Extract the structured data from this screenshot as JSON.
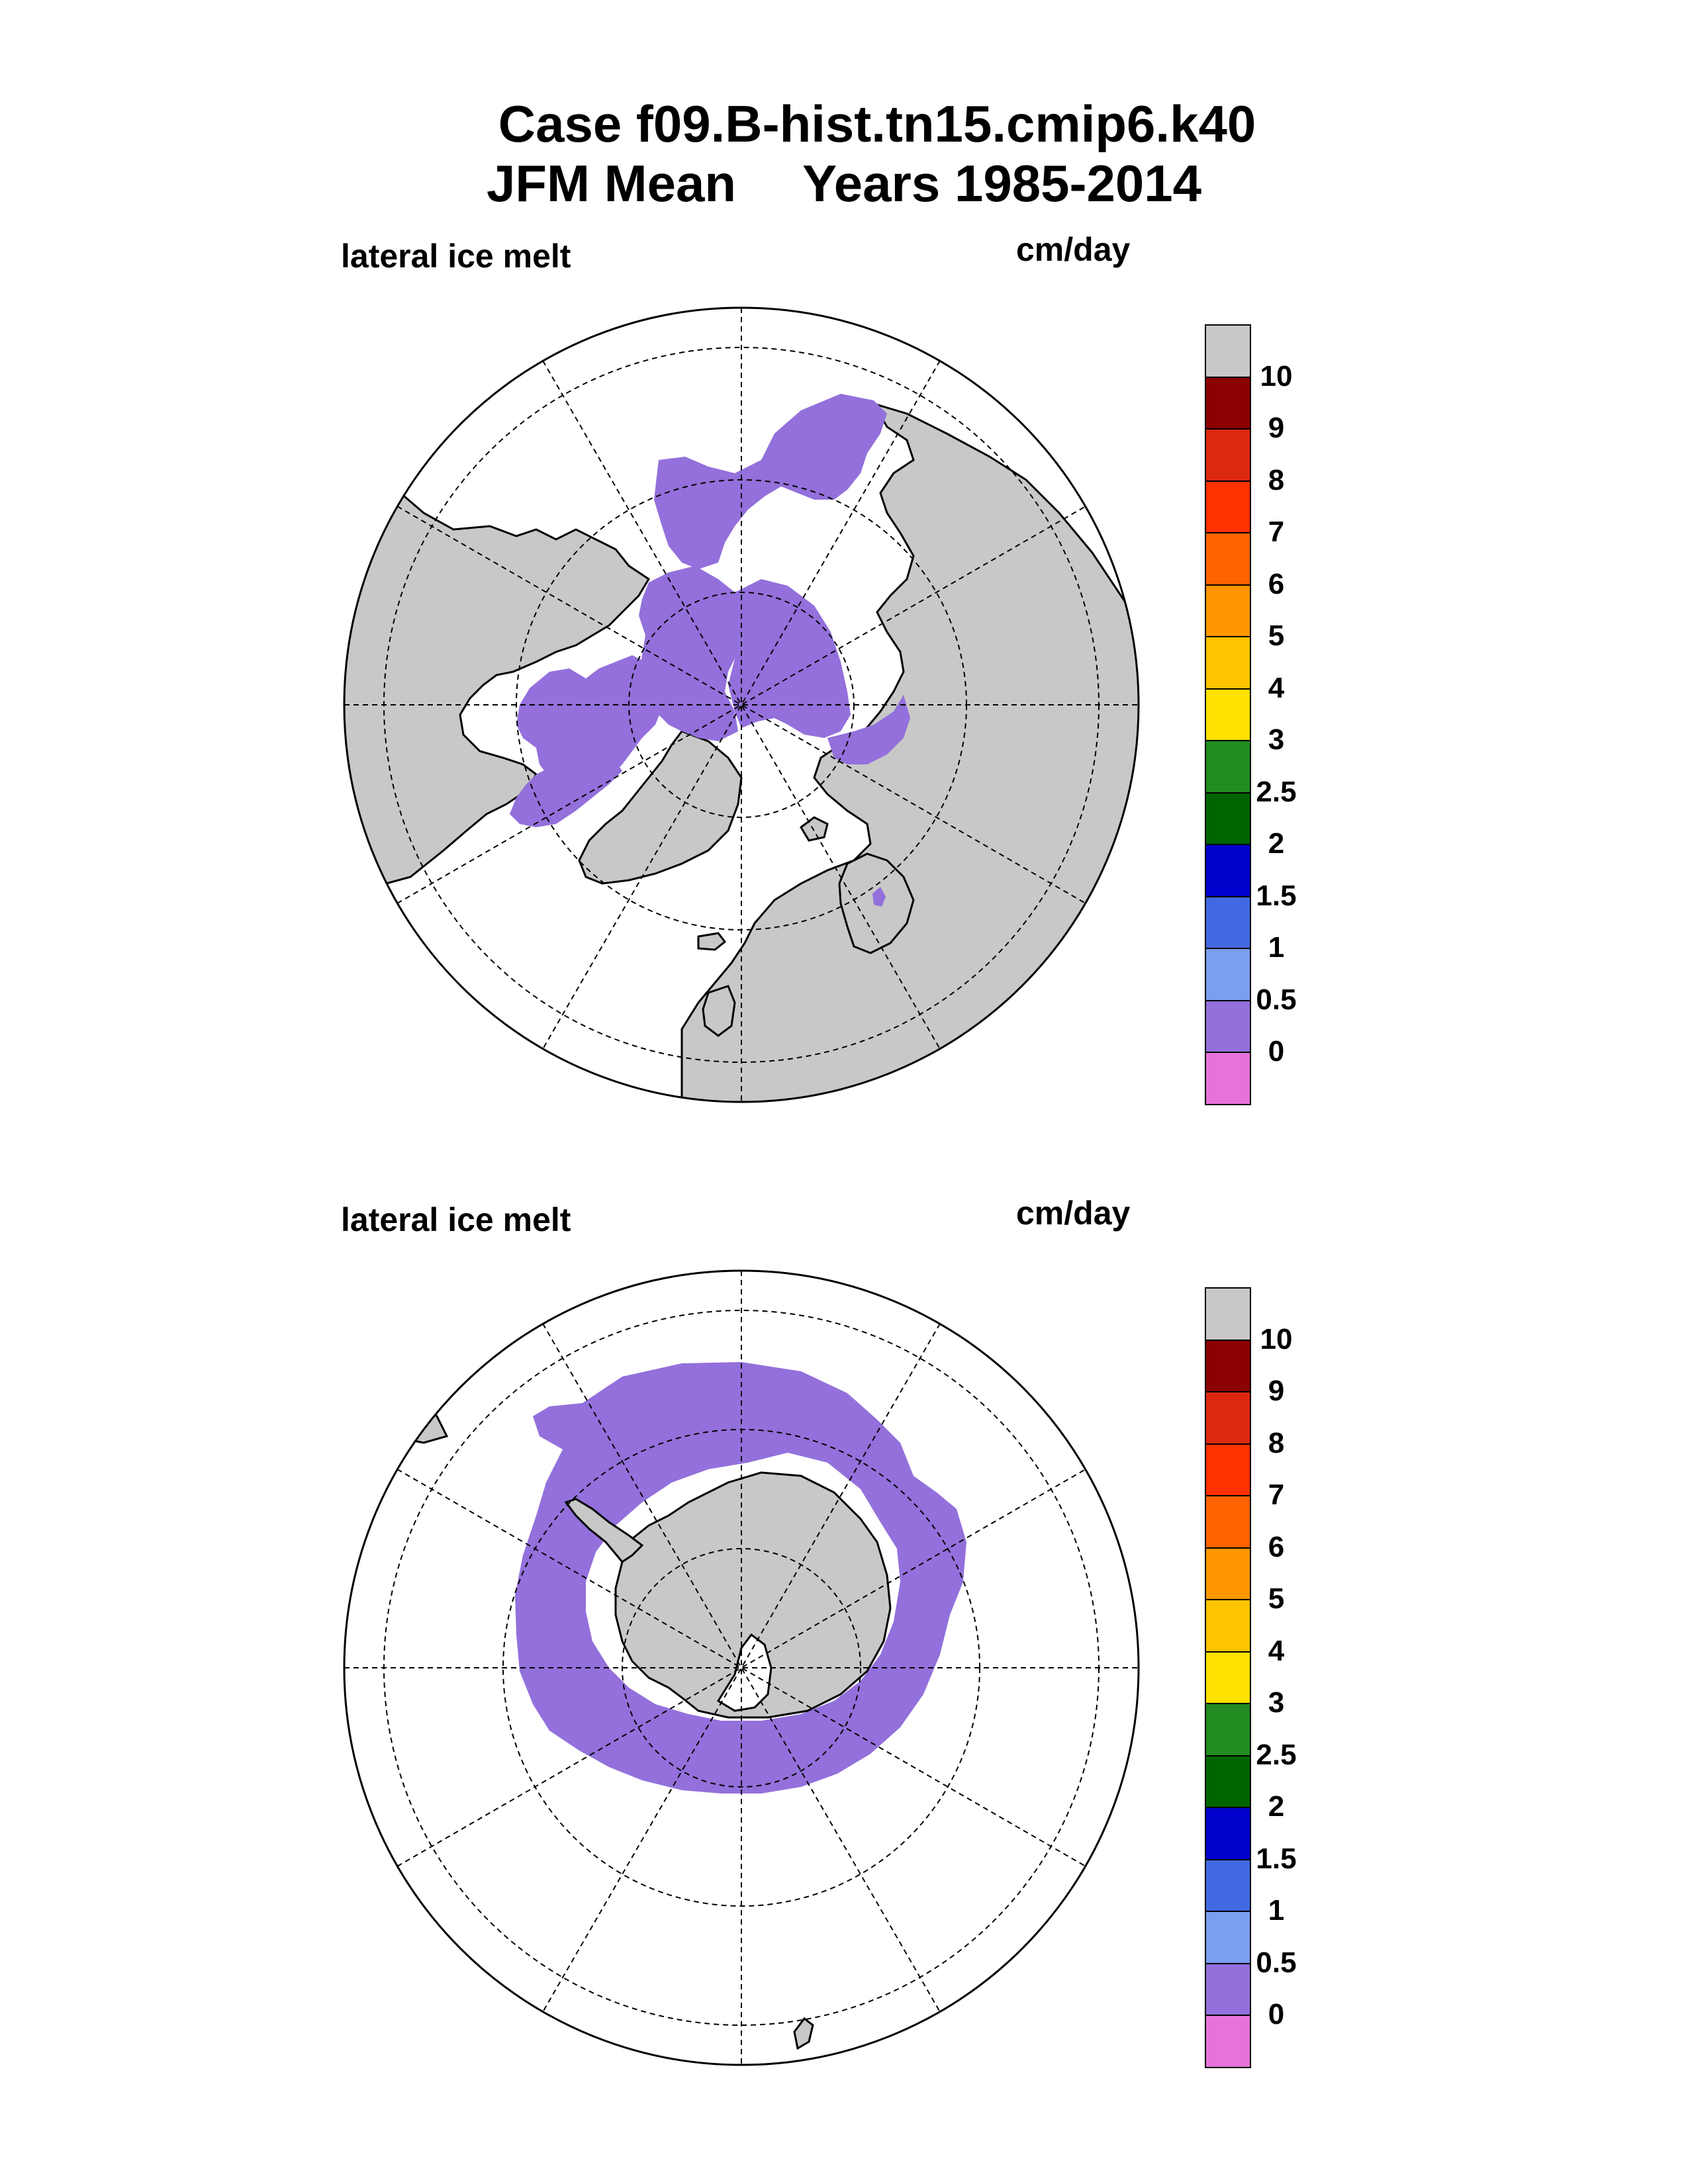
{
  "title": {
    "line1": "Case f09.B-hist.tn15.cmip6.k40",
    "season": "JFM Mean",
    "years": "Years 1985-2014"
  },
  "panels": [
    {
      "hemisphere": "north",
      "variable_label": "lateral ice melt",
      "units_label": "cm/day"
    },
    {
      "hemisphere": "south",
      "variable_label": "lateral ice melt",
      "units_label": "cm/day"
    }
  ],
  "colorbar": {
    "colors": [
      "#c8c8c8",
      "#8b0000",
      "#dc2810",
      "#ff3200",
      "#ff6400",
      "#ff9600",
      "#ffc400",
      "#ffe100",
      "#228b22",
      "#006400",
      "#0000cd",
      "#4169e1",
      "#7b9ef0",
      "#9370db",
      "#e673da"
    ],
    "labels": [
      "10",
      "9",
      "8",
      "7",
      "6",
      "5",
      "4",
      "3",
      "2.5",
      "2",
      "1.5",
      "1",
      "0.5",
      "0"
    ]
  },
  "colors": {
    "land": "#c8c8c8",
    "ice_melt": "#9370db",
    "ocean": "#ffffff"
  }
}
